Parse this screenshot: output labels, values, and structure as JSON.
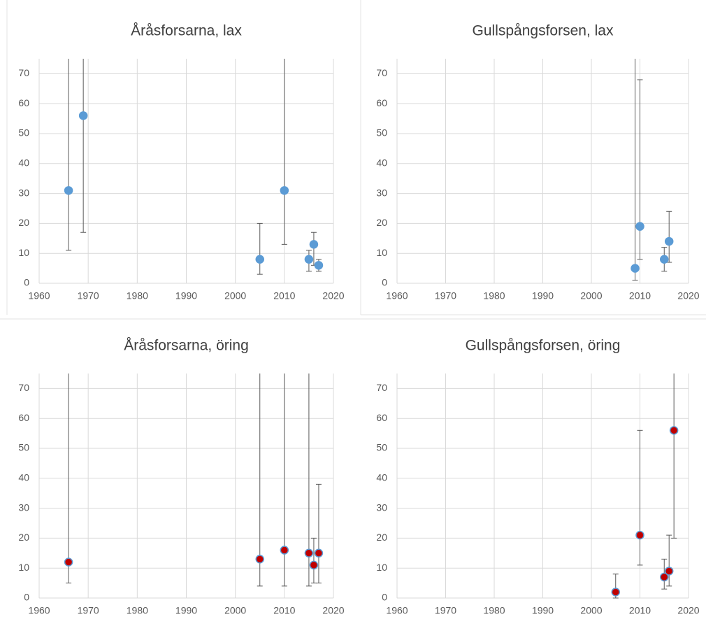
{
  "chart_data": [
    {
      "type": "scatter",
      "title": "Åråsforsarna, lax",
      "xlim": [
        1960,
        2020
      ],
      "xticks": [
        1960,
        1970,
        1980,
        1990,
        2000,
        2010,
        2020
      ],
      "ylim": [
        0,
        75
      ],
      "yticks": [
        0,
        10,
        20,
        30,
        40,
        50,
        60,
        70
      ],
      "grid": true,
      "series": [
        {
          "color": "#5b9bd5",
          "edge_color": "#5b9bd5",
          "x": [
            1966,
            1969,
            2005,
            2010,
            2015,
            2016,
            2017
          ],
          "values": [
            31,
            56,
            8,
            31,
            8,
            13,
            6
          ],
          "error_low": [
            11,
            17,
            3,
            13,
            4,
            6,
            4
          ],
          "error_high": [
            90,
            90,
            20,
            90,
            11,
            17,
            8
          ]
        }
      ]
    },
    {
      "type": "scatter",
      "title": "Gullspångsforsen, lax",
      "xlim": [
        1960,
        2020
      ],
      "xticks": [
        1960,
        1970,
        1980,
        1990,
        2000,
        2010,
        2020
      ],
      "ylim": [
        0,
        75
      ],
      "yticks": [
        0,
        10,
        20,
        30,
        40,
        50,
        60,
        70
      ],
      "grid": true,
      "series": [
        {
          "color": "#5b9bd5",
          "edge_color": "#5b9bd5",
          "x": [
            2009,
            2010,
            2015,
            2016
          ],
          "values": [
            5,
            19,
            8,
            14
          ],
          "error_low": [
            1,
            8,
            4,
            7
          ],
          "error_high": [
            90,
            68,
            12,
            24
          ]
        }
      ]
    },
    {
      "type": "scatter",
      "title": "Åråsforsarna, öring",
      "xlim": [
        1960,
        2020
      ],
      "xticks": [
        1960,
        1970,
        1980,
        1990,
        2000,
        2010,
        2020
      ],
      "ylim": [
        0,
        75
      ],
      "yticks": [
        0,
        10,
        20,
        30,
        40,
        50,
        60,
        70
      ],
      "grid": true,
      "series": [
        {
          "color": "#c00000",
          "edge_color": "#5b9bd5",
          "x": [
            1966,
            2005,
            2010,
            2015,
            2016,
            2017
          ],
          "values": [
            12,
            13,
            16,
            15,
            11,
            15
          ],
          "error_low": [
            5,
            4,
            4,
            4,
            5,
            5
          ],
          "error_high": [
            90,
            90,
            90,
            90,
            20,
            38
          ]
        }
      ]
    },
    {
      "type": "scatter",
      "title": "Gullspångsforsen, öring",
      "xlim": [
        1960,
        2020
      ],
      "xticks": [
        1960,
        1970,
        1980,
        1990,
        2000,
        2010,
        2020
      ],
      "ylim": [
        0,
        75
      ],
      "yticks": [
        0,
        10,
        20,
        30,
        40,
        50,
        60,
        70
      ],
      "grid": true,
      "series": [
        {
          "color": "#c00000",
          "edge_color": "#5b9bd5",
          "x": [
            2005,
            2010,
            2015,
            2016,
            2017
          ],
          "values": [
            2,
            21,
            7,
            9,
            56
          ],
          "error_low": [
            0,
            11,
            3,
            4,
            20
          ],
          "error_high": [
            8,
            56,
            13,
            21,
            90
          ]
        }
      ]
    }
  ]
}
